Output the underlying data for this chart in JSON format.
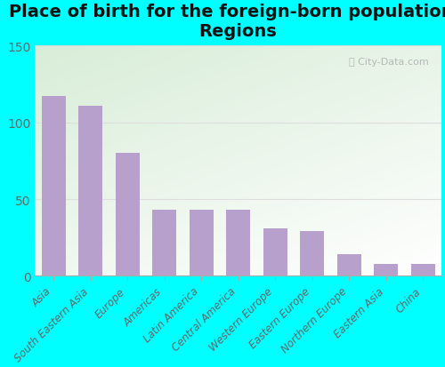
{
  "title": "Place of birth for the foreign-born population -\nRegions",
  "categories": [
    "Asia",
    "South Eastern Asia",
    "Europe",
    "Americas",
    "Latin America",
    "Central America",
    "Western Europe",
    "Eastern Europe",
    "Northern Europe",
    "Eastern Asia",
    "China"
  ],
  "values": [
    117,
    111,
    80,
    43,
    43,
    43,
    31,
    29,
    14,
    8,
    8
  ],
  "bar_color": "#b8a0cc",
  "background_color": "#00ffff",
  "plot_bg_topleft": "#d8edd8",
  "plot_bg_topright": "#e8f5e8",
  "plot_bg_bottomleft": "#f0f8f0",
  "plot_bg_bottomright": "#ffffff",
  "grid_color": "#dddddd",
  "ylim": [
    0,
    150
  ],
  "yticks": [
    0,
    50,
    100,
    150
  ],
  "title_fontsize": 14,
  "tick_label_fontsize": 8.5,
  "ytick_fontsize": 10,
  "watermark": "City-Data.com",
  "watermark_color": "#aaaaaa"
}
